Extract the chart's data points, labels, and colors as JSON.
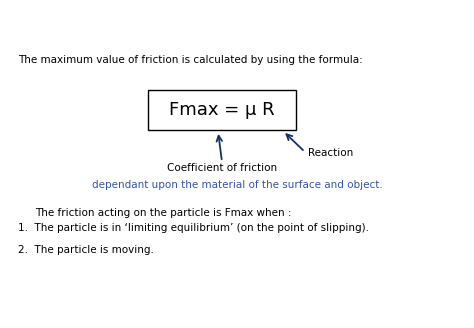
{
  "bg_color": "#ffffff",
  "title_text": "The maximum value of friction is calculated by using the formula:",
  "formula_text": "Fmax = μ R",
  "coeff_label": "Coefficient of friction",
  "blue_label": "dependant upon the material of the surface and object.",
  "reaction_label": "Reaction",
  "friction_intro": "The friction acting on the particle is Fmax when :",
  "item1": "The particle is in ‘limiting equilibrium’ (on the point of slipping).",
  "item2": "The particle is moving.",
  "text_color": "#000000",
  "blue_color": "#3355aa",
  "arrow_color": "#1a3060",
  "box_color": "#000000",
  "formula_fontsize": 13,
  "body_fontsize": 7.5,
  "title_fontsize": 7.5
}
